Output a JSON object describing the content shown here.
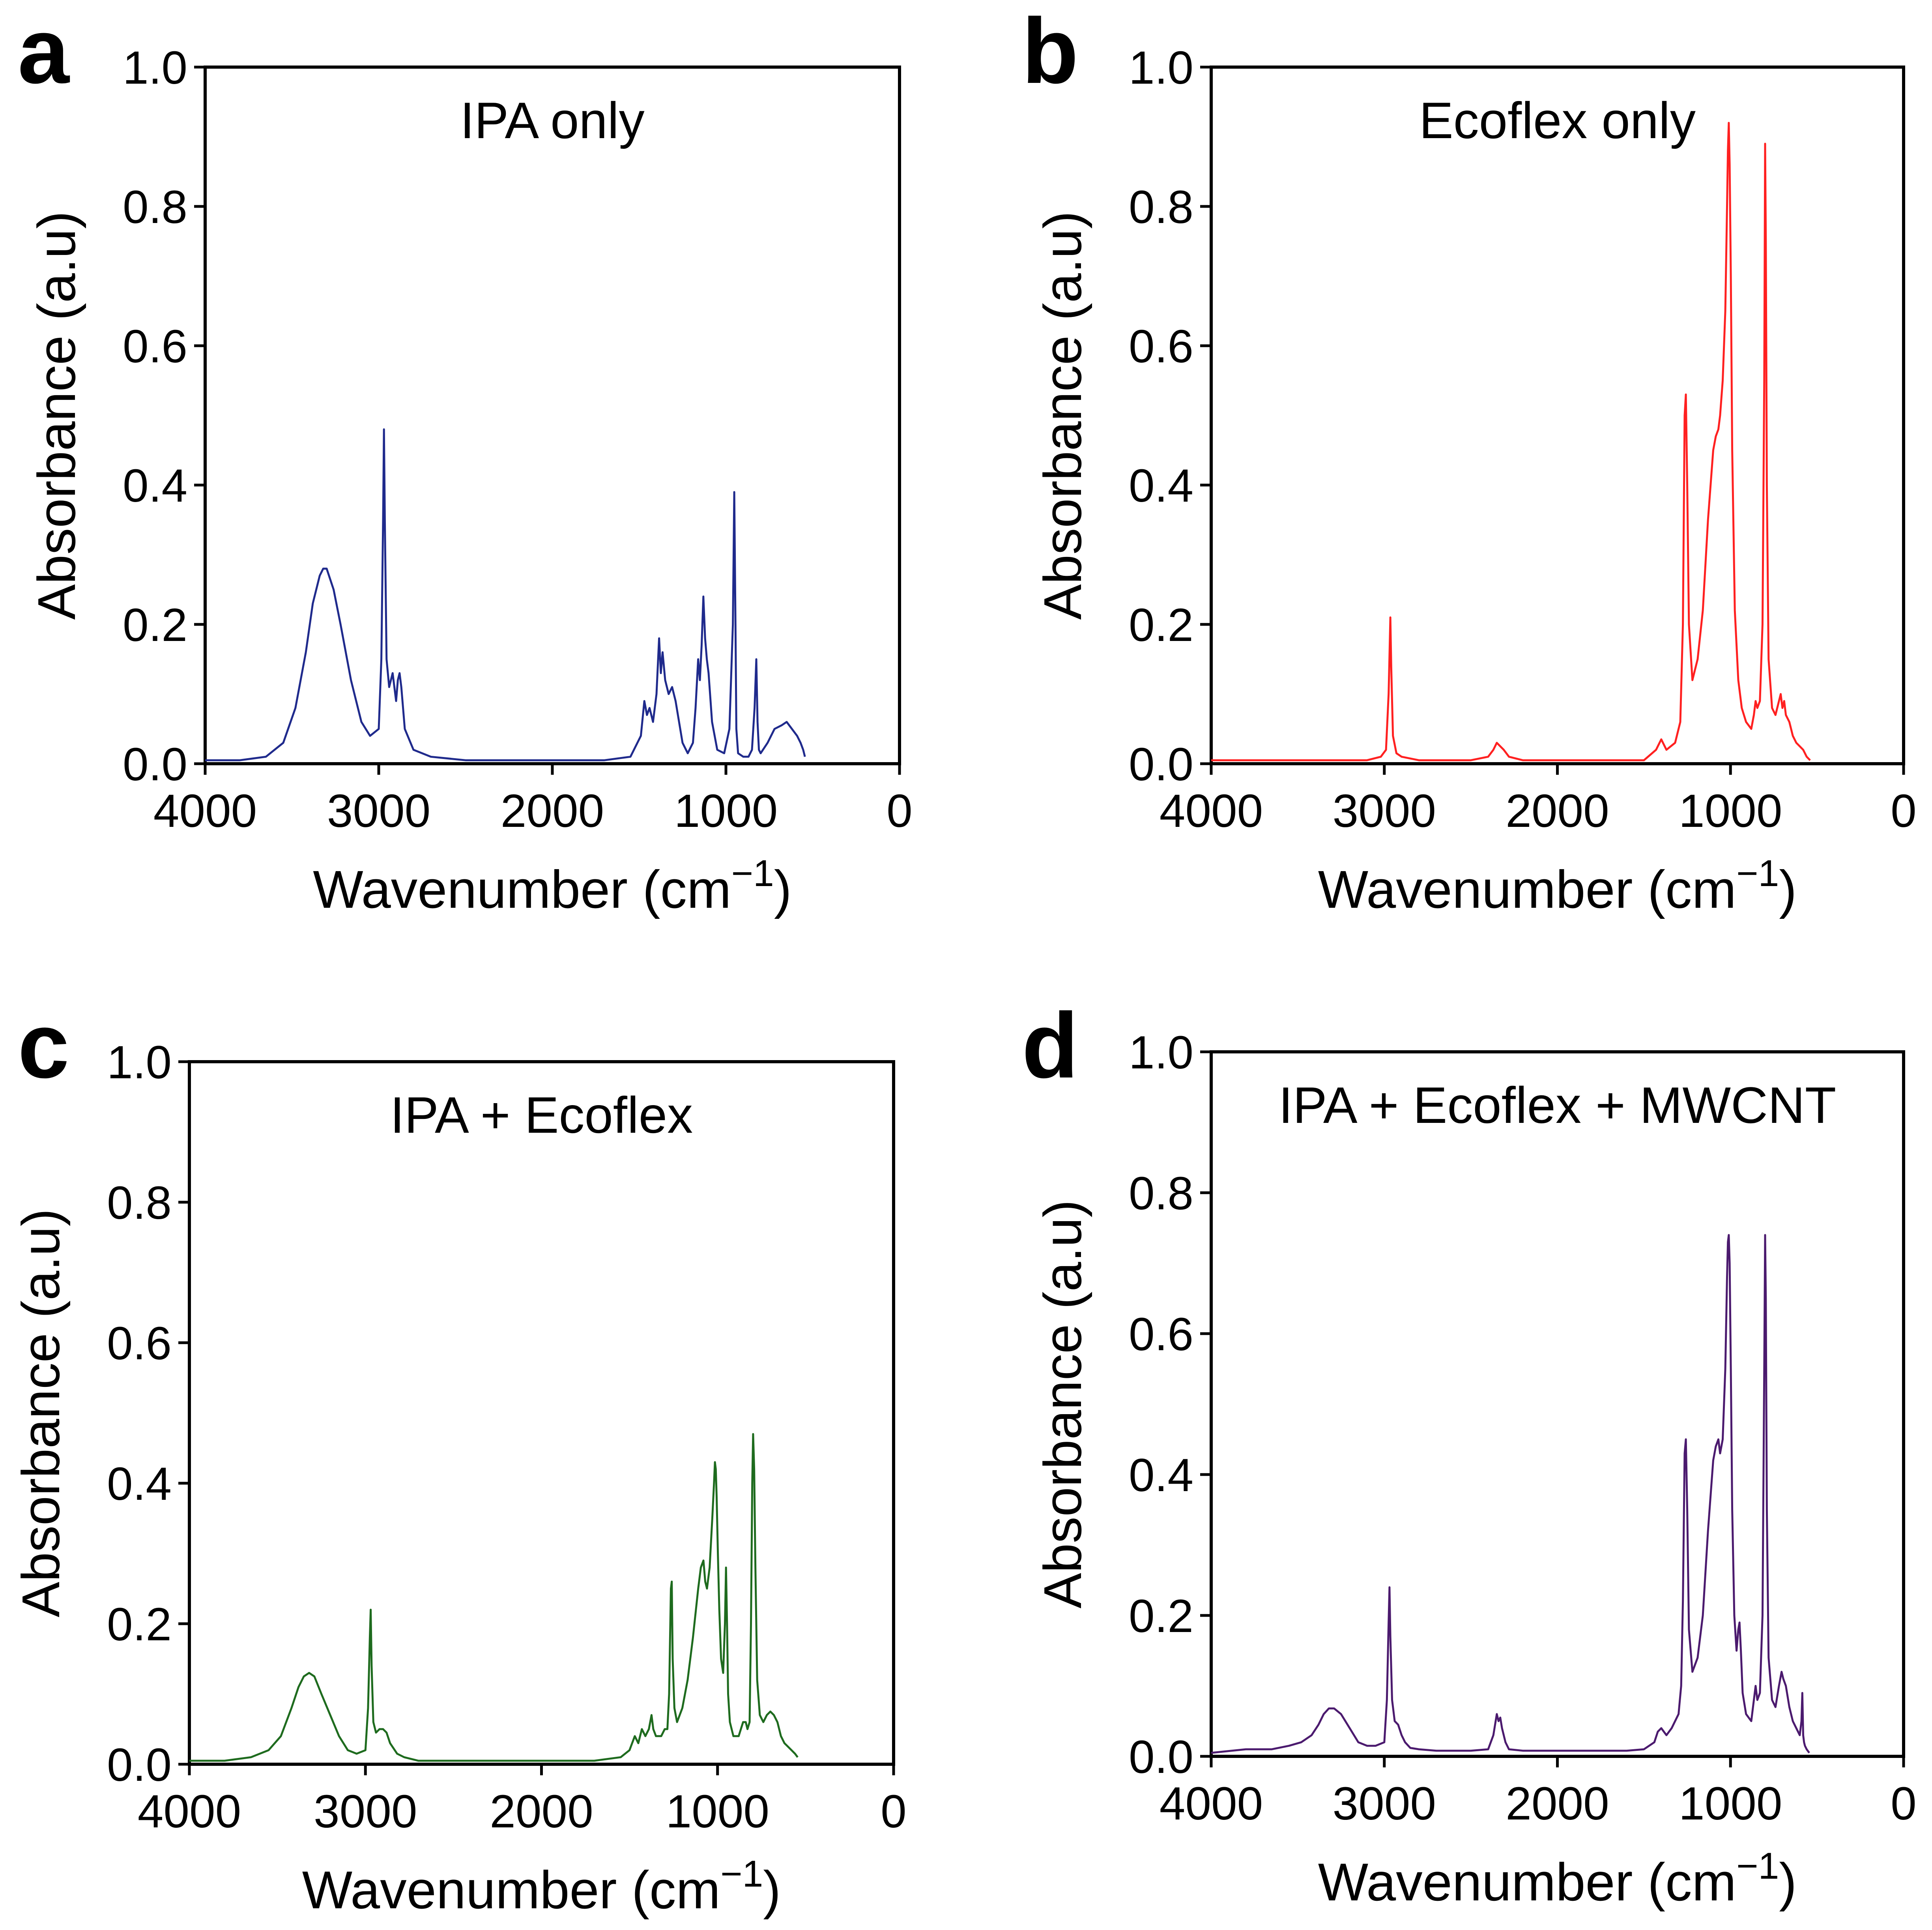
{
  "figure": {
    "panels": [
      {
        "letter": "a",
        "title": "IPA only"
      },
      {
        "letter": "b",
        "title": "Ecoflex only"
      },
      {
        "letter": "c",
        "title": "IPA + Ecoflex"
      },
      {
        "letter": "d",
        "title": "IPA + Ecoflex + MWCNT"
      }
    ]
  },
  "chart_data": [
    {
      "type": "line",
      "panel": "a",
      "title": "IPA only",
      "xlabel": "Wavenumber (cm",
      "xlabel_sup": "−1",
      "xlabel_close": ")",
      "ylabel": "Absorbance (a.u)",
      "xlim": [
        4000,
        0
      ],
      "ylim": [
        0,
        1.0
      ],
      "xticks": [
        "4000",
        "3000",
        "2000",
        "1000",
        "0"
      ],
      "xtick_values": [
        4000,
        3000,
        2000,
        1000,
        0
      ],
      "yticks": [
        "0.0",
        "0.2",
        "0.4",
        "0.6",
        "0.8",
        "1.0"
      ],
      "ytick_values": [
        0,
        0.2,
        0.4,
        0.6,
        0.8,
        1.0
      ],
      "color": "#1f2a8c",
      "series": [
        {
          "name": "IPA only",
          "x": [
            4000,
            3800,
            3650,
            3550,
            3480,
            3420,
            3380,
            3340,
            3320,
            3300,
            3260,
            3220,
            3160,
            3100,
            3050,
            3000,
            2985,
            2975,
            2970,
            2965,
            2955,
            2940,
            2920,
            2900,
            2890,
            2880,
            2870,
            2850,
            2800,
            2700,
            2500,
            2200,
            1900,
            1700,
            1550,
            1490,
            1470,
            1455,
            1440,
            1420,
            1400,
            1385,
            1375,
            1365,
            1350,
            1330,
            1310,
            1290,
            1270,
            1250,
            1220,
            1190,
            1175,
            1160,
            1150,
            1140,
            1130,
            1120,
            1110,
            1100,
            1080,
            1050,
            1010,
            980,
            960,
            952,
            945,
            940,
            930,
            900,
            870,
            850,
            835,
            825,
            818,
            810,
            800,
            760,
            720,
            680,
            650,
            620,
            590,
            570,
            555,
            545
          ],
          "y": [
            0.005,
            0.005,
            0.01,
            0.03,
            0.08,
            0.16,
            0.23,
            0.27,
            0.28,
            0.28,
            0.25,
            0.2,
            0.12,
            0.06,
            0.04,
            0.05,
            0.15,
            0.35,
            0.48,
            0.35,
            0.15,
            0.11,
            0.13,
            0.09,
            0.12,
            0.13,
            0.11,
            0.05,
            0.02,
            0.01,
            0.005,
            0.005,
            0.005,
            0.005,
            0.01,
            0.04,
            0.09,
            0.07,
            0.08,
            0.06,
            0.1,
            0.18,
            0.13,
            0.16,
            0.12,
            0.1,
            0.11,
            0.09,
            0.06,
            0.03,
            0.015,
            0.03,
            0.08,
            0.15,
            0.12,
            0.17,
            0.24,
            0.18,
            0.15,
            0.13,
            0.06,
            0.02,
            0.015,
            0.05,
            0.2,
            0.39,
            0.2,
            0.05,
            0.015,
            0.01,
            0.01,
            0.02,
            0.08,
            0.15,
            0.06,
            0.02,
            0.015,
            0.03,
            0.05,
            0.055,
            0.06,
            0.05,
            0.04,
            0.03,
            0.02,
            0.01
          ]
        }
      ]
    },
    {
      "type": "line",
      "panel": "b",
      "title": "Ecoflex only",
      "xlabel": "Wavenumber (cm",
      "xlabel_sup": "−1",
      "xlabel_close": ")",
      "ylabel": "Absorbance (a.u)",
      "xlim": [
        4000,
        0
      ],
      "ylim": [
        0,
        1.0
      ],
      "xticks": [
        "4000",
        "3000",
        "2000",
        "1000",
        "0"
      ],
      "xtick_values": [
        4000,
        3000,
        2000,
        1000,
        0
      ],
      "yticks": [
        "0.0",
        "0.2",
        "0.4",
        "0.6",
        "0.8",
        "1.0"
      ],
      "ytick_values": [
        0,
        0.2,
        0.4,
        0.6,
        0.8,
        1.0
      ],
      "color": "#ff2020",
      "series": [
        {
          "name": "Ecoflex only",
          "x": [
            4000,
            3500,
            3100,
            3020,
            2990,
            2975,
            2965,
            2960,
            2950,
            2930,
            2900,
            2800,
            2500,
            2400,
            2370,
            2350,
            2330,
            2310,
            2280,
            2200,
            2000,
            1800,
            1600,
            1500,
            1430,
            1410,
            1400,
            1390,
            1370,
            1320,
            1290,
            1275,
            1265,
            1258,
            1250,
            1240,
            1220,
            1190,
            1160,
            1130,
            1100,
            1085,
            1070,
            1060,
            1045,
            1030,
            1020,
            1015,
            1010,
            1005,
            998,
            990,
            975,
            955,
            935,
            910,
            880,
            865,
            855,
            845,
            830,
            815,
            805,
            800,
            796,
            790,
            780,
            760,
            740,
            720,
            710,
            700,
            690,
            680,
            660,
            640,
            620,
            600,
            580,
            560,
            540
          ],
          "y": [
            0.005,
            0.005,
            0.005,
            0.01,
            0.02,
            0.1,
            0.21,
            0.14,
            0.04,
            0.015,
            0.01,
            0.005,
            0.005,
            0.01,
            0.02,
            0.03,
            0.025,
            0.02,
            0.01,
            0.005,
            0.005,
            0.005,
            0.005,
            0.005,
            0.02,
            0.03,
            0.035,
            0.03,
            0.02,
            0.03,
            0.06,
            0.2,
            0.5,
            0.53,
            0.4,
            0.2,
            0.12,
            0.15,
            0.22,
            0.35,
            0.45,
            0.47,
            0.48,
            0.5,
            0.55,
            0.65,
            0.8,
            0.88,
            0.92,
            0.86,
            0.7,
            0.45,
            0.22,
            0.12,
            0.08,
            0.06,
            0.05,
            0.07,
            0.09,
            0.08,
            0.09,
            0.2,
            0.55,
            0.89,
            0.75,
            0.4,
            0.15,
            0.08,
            0.07,
            0.09,
            0.1,
            0.08,
            0.09,
            0.07,
            0.06,
            0.04,
            0.03,
            0.025,
            0.02,
            0.01,
            0.005
          ]
        }
      ]
    },
    {
      "type": "line",
      "panel": "c",
      "title": "IPA + Ecoflex",
      "xlabel": "Wavenumber (cm",
      "xlabel_sup": "−1",
      "xlabel_close": ")",
      "ylabel": "Absorbance (a.u)",
      "xlim": [
        4000,
        0
      ],
      "ylim": [
        0,
        1.0
      ],
      "xticks": [
        "4000",
        "3000",
        "2000",
        "1000",
        "0"
      ],
      "xtick_values": [
        4000,
        3000,
        2000,
        1000,
        0
      ],
      "yticks": [
        "0.0",
        "0.2",
        "0.4",
        "0.6",
        "0.8",
        "1.0"
      ],
      "ytick_values": [
        0,
        0.2,
        0.4,
        0.6,
        0.8,
        1.0
      ],
      "color": "#1e6b1e",
      "series": [
        {
          "name": "IPA + Ecoflex",
          "x": [
            4000,
            3800,
            3650,
            3550,
            3480,
            3420,
            3380,
            3350,
            3320,
            3290,
            3250,
            3200,
            3150,
            3100,
            3050,
            3000,
            2985,
            2975,
            2970,
            2965,
            2955,
            2940,
            2920,
            2900,
            2880,
            2860,
            2820,
            2780,
            2700,
            2600,
            2400,
            2000,
            1700,
            1550,
            1500,
            1470,
            1450,
            1430,
            1410,
            1390,
            1375,
            1365,
            1350,
            1320,
            1300,
            1285,
            1275,
            1265,
            1260,
            1255,
            1245,
            1230,
            1200,
            1170,
            1140,
            1110,
            1095,
            1080,
            1070,
            1060,
            1045,
            1030,
            1020,
            1015,
            1010,
            1005,
            998,
            990,
            980,
            968,
            958,
            952,
            946,
            940,
            930,
            910,
            880,
            855,
            840,
            830,
            818,
            810,
            803,
            798,
            792,
            785,
            775,
            760,
            740,
            720,
            700,
            680,
            660,
            640,
            620,
            600,
            580,
            560,
            545
          ],
          "y": [
            0.005,
            0.005,
            0.01,
            0.02,
            0.04,
            0.08,
            0.11,
            0.125,
            0.13,
            0.125,
            0.1,
            0.07,
            0.04,
            0.02,
            0.015,
            0.02,
            0.08,
            0.18,
            0.22,
            0.14,
            0.06,
            0.045,
            0.05,
            0.05,
            0.045,
            0.03,
            0.015,
            0.01,
            0.005,
            0.005,
            0.005,
            0.005,
            0.005,
            0.01,
            0.02,
            0.04,
            0.03,
            0.05,
            0.04,
            0.05,
            0.07,
            0.05,
            0.04,
            0.04,
            0.05,
            0.05,
            0.1,
            0.25,
            0.26,
            0.15,
            0.08,
            0.06,
            0.08,
            0.12,
            0.18,
            0.25,
            0.28,
            0.29,
            0.26,
            0.25,
            0.28,
            0.35,
            0.4,
            0.43,
            0.42,
            0.38,
            0.3,
            0.22,
            0.15,
            0.13,
            0.2,
            0.28,
            0.2,
            0.1,
            0.06,
            0.04,
            0.04,
            0.06,
            0.06,
            0.05,
            0.06,
            0.2,
            0.4,
            0.47,
            0.42,
            0.28,
            0.12,
            0.07,
            0.06,
            0.07,
            0.075,
            0.07,
            0.06,
            0.04,
            0.03,
            0.025,
            0.02,
            0.015,
            0.01
          ]
        }
      ]
    },
    {
      "type": "line",
      "panel": "d",
      "title": "IPA + Ecoflex + MWCNT",
      "xlabel": "Wavenumber (cm",
      "xlabel_sup": "−1",
      "xlabel_close": ")",
      "ylabel": "Absorbance (a.u)",
      "xlim": [
        4000,
        0
      ],
      "ylim": [
        0,
        1.0
      ],
      "xticks": [
        "4000",
        "3000",
        "2000",
        "1000",
        "0"
      ],
      "xtick_values": [
        4000,
        3000,
        2000,
        1000,
        0
      ],
      "yticks": [
        "0.0",
        "0.2",
        "0.4",
        "0.6",
        "0.8",
        "1.0"
      ],
      "ytick_values": [
        0,
        0.2,
        0.4,
        0.6,
        0.8,
        1.0
      ],
      "color": "#4b1a6e",
      "series": [
        {
          "name": "IPA + Ecoflex + MWCNT",
          "x": [
            4000,
            3800,
            3650,
            3550,
            3480,
            3420,
            3380,
            3350,
            3320,
            3290,
            3250,
            3200,
            3150,
            3100,
            3050,
            3000,
            2985,
            2975,
            2970,
            2965,
            2955,
            2940,
            2920,
            2900,
            2880,
            2850,
            2800,
            2700,
            2500,
            2400,
            2370,
            2350,
            2340,
            2330,
            2320,
            2300,
            2280,
            2200,
            2000,
            1800,
            1600,
            1500,
            1440,
            1420,
            1400,
            1385,
            1370,
            1340,
            1300,
            1285,
            1275,
            1265,
            1258,
            1250,
            1240,
            1220,
            1190,
            1160,
            1130,
            1100,
            1085,
            1070,
            1060,
            1045,
            1030,
            1020,
            1015,
            1010,
            1005,
            998,
            990,
            978,
            965,
            955,
            948,
            940,
            930,
            910,
            880,
            865,
            855,
            845,
            830,
            815,
            805,
            800,
            796,
            790,
            780,
            760,
            740,
            720,
            705,
            695,
            680,
            660,
            640,
            620,
            600,
            590,
            585,
            580,
            575,
            570,
            560,
            545
          ],
          "y": [
            0.005,
            0.01,
            0.01,
            0.015,
            0.02,
            0.03,
            0.045,
            0.06,
            0.068,
            0.068,
            0.06,
            0.04,
            0.02,
            0.015,
            0.015,
            0.02,
            0.08,
            0.19,
            0.24,
            0.17,
            0.08,
            0.05,
            0.045,
            0.03,
            0.02,
            0.012,
            0.01,
            0.008,
            0.008,
            0.01,
            0.03,
            0.06,
            0.05,
            0.055,
            0.04,
            0.02,
            0.01,
            0.008,
            0.008,
            0.008,
            0.008,
            0.01,
            0.02,
            0.035,
            0.04,
            0.035,
            0.03,
            0.04,
            0.06,
            0.1,
            0.22,
            0.43,
            0.45,
            0.35,
            0.18,
            0.12,
            0.14,
            0.2,
            0.32,
            0.42,
            0.44,
            0.45,
            0.43,
            0.45,
            0.55,
            0.68,
            0.73,
            0.74,
            0.7,
            0.55,
            0.35,
            0.2,
            0.15,
            0.18,
            0.19,
            0.15,
            0.09,
            0.06,
            0.05,
            0.08,
            0.1,
            0.08,
            0.09,
            0.2,
            0.55,
            0.74,
            0.65,
            0.35,
            0.14,
            0.08,
            0.07,
            0.1,
            0.12,
            0.11,
            0.1,
            0.07,
            0.05,
            0.04,
            0.03,
            0.05,
            0.09,
            0.03,
            0.02,
            0.015,
            0.01,
            0.005
          ]
        }
      ]
    }
  ]
}
